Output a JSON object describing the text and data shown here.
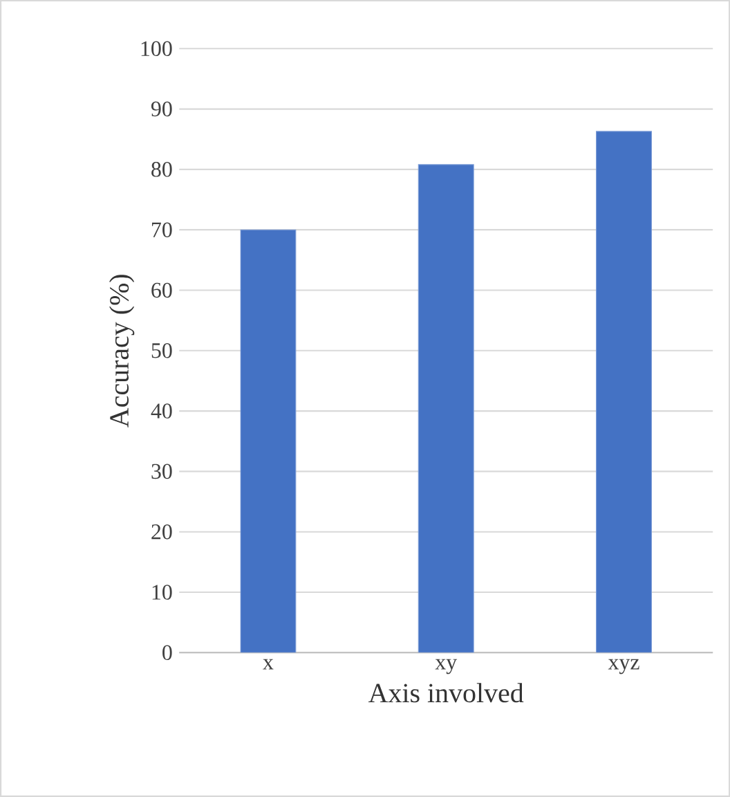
{
  "chart_data": {
    "type": "bar",
    "xlabel": "Axis involved",
    "ylabel": "Accuracy (%)",
    "categories": [
      "x",
      "xy",
      "xyz"
    ],
    "values": [
      70,
      80.8,
      86.3
    ],
    "color": "#4472c4",
    "ylim": [
      0,
      100
    ],
    "yticks": [
      0,
      10,
      20,
      30,
      40,
      50,
      60,
      70,
      80,
      90,
      100
    ],
    "grid": "y"
  }
}
